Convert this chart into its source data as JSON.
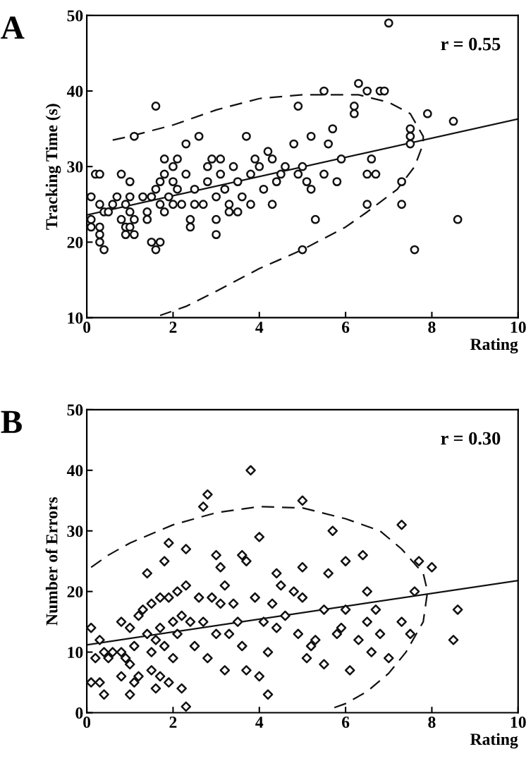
{
  "chart_data": [
    {
      "type": "scatter",
      "title": "A",
      "xlabel": "Rating",
      "ylabel": "Tracking Time (s)",
      "annotations": [
        "r = 0.55"
      ],
      "xlim": [
        0,
        10
      ],
      "ylim": [
        10,
        50
      ],
      "xticks": [
        0,
        2,
        4,
        6,
        8,
        10
      ],
      "yticks": [
        10,
        20,
        30,
        40,
        50
      ],
      "grid": false,
      "legend": false,
      "series": [
        {
          "marker": "circle",
          "color": "#111111",
          "x": [
            0.1,
            0.1,
            0.1,
            0.2,
            0.3,
            0.3,
            0.3,
            0.3,
            0.3,
            0.4,
            0.4,
            0.5,
            0.6,
            0.7,
            0.8,
            0.8,
            0.9,
            0.9,
            0.9,
            1.0,
            1.0,
            1.0,
            1.0,
            1.1,
            1.1,
            1.1,
            1.3,
            1.4,
            1.4,
            1.5,
            1.5,
            1.6,
            1.6,
            1.6,
            1.7,
            1.7,
            1.7,
            1.8,
            1.8,
            1.8,
            1.9,
            2.0,
            2.0,
            2.0,
            2.1,
            2.1,
            2.2,
            2.3,
            2.3,
            2.4,
            2.4,
            2.5,
            2.5,
            2.6,
            2.7,
            2.8,
            2.8,
            2.9,
            3.0,
            3.0,
            3.0,
            3.1,
            3.1,
            3.2,
            3.3,
            3.3,
            3.4,
            3.5,
            3.5,
            3.6,
            3.7,
            3.8,
            3.8,
            3.9,
            4.0,
            4.1,
            4.2,
            4.3,
            4.3,
            4.4,
            4.5,
            4.6,
            4.8,
            4.9,
            4.9,
            5.0,
            5.0,
            5.1,
            5.2,
            5.2,
            5.3,
            5.5,
            5.5,
            5.6,
            5.7,
            5.8,
            5.9,
            6.2,
            6.2,
            6.3,
            6.5,
            6.5,
            6.5,
            6.6,
            6.7,
            6.8,
            6.9,
            7.0,
            7.3,
            7.3,
            7.5,
            7.5,
            7.5,
            7.6,
            7.9,
            8.5,
            8.6
          ],
          "values": [
            26,
            22,
            23,
            29,
            29,
            25,
            22,
            21,
            20,
            19,
            24,
            24,
            25,
            26,
            29,
            23,
            22,
            21,
            25,
            24,
            26,
            28,
            22,
            34,
            21,
            23,
            26,
            24,
            23,
            20,
            26,
            19,
            27,
            38,
            20,
            25,
            28,
            29,
            31,
            24,
            26,
            30,
            25,
            28,
            31,
            27,
            25,
            33,
            29,
            22,
            23,
            25,
            27,
            34,
            25,
            30,
            28,
            31,
            26,
            23,
            21,
            31,
            29,
            27,
            25,
            24,
            30,
            28,
            24,
            26,
            34,
            29,
            25,
            31,
            30,
            27,
            32,
            31,
            25,
            28,
            29,
            30,
            33,
            38,
            29,
            30,
            19,
            28,
            34,
            27,
            23,
            40,
            29,
            33,
            35,
            28,
            31,
            37,
            38,
            41,
            40,
            29,
            25,
            31,
            29,
            40,
            40,
            49,
            28,
            25,
            35,
            34,
            33,
            19,
            37,
            36,
            23
          ]
        },
        {
          "type": "line",
          "line_style": "solid",
          "color": "#111111",
          "x": [
            0,
            10
          ],
          "values": [
            23.6,
            36.3
          ]
        },
        {
          "type": "line",
          "line_style": "dashed",
          "color": "#111111",
          "x": [
            0.6,
            1,
            2,
            3,
            4,
            5,
            6.3,
            7,
            7.5,
            7.8,
            7.8,
            7.6,
            7.2,
            6.5,
            6,
            5,
            4,
            3,
            2.3,
            1.7
          ],
          "values": [
            33.5,
            34,
            35.5,
            37.5,
            39,
            39.5,
            39.5,
            38.5,
            37,
            34,
            33,
            30,
            27,
            24,
            22,
            19,
            16.5,
            13.5,
            11.5,
            10.3
          ]
        }
      ]
    },
    {
      "type": "scatter",
      "title": "B",
      "xlabel": "Rating",
      "ylabel": "Number of Errors",
      "annotations": [
        "r = 0.30"
      ],
      "xlim": [
        0,
        10
      ],
      "ylim": [
        0,
        50
      ],
      "xticks": [
        0,
        2,
        4,
        6,
        8,
        10
      ],
      "yticks": [
        0,
        10,
        20,
        30,
        40,
        50
      ],
      "grid": false,
      "legend": false,
      "series": [
        {
          "marker": "diamond",
          "color": "#111111",
          "x": [
            0.1,
            0.1,
            0.2,
            0.3,
            0.3,
            0.4,
            0.4,
            0.5,
            0.6,
            0.8,
            0.8,
            0.8,
            0.9,
            1.0,
            1.0,
            1.0,
            1.1,
            1.1,
            1.2,
            1.2,
            1.3,
            1.4,
            1.4,
            1.5,
            1.5,
            1.5,
            1.6,
            1.6,
            1.7,
            1.7,
            1.7,
            1.8,
            1.8,
            1.9,
            1.9,
            1.9,
            2.0,
            2.0,
            2.1,
            2.1,
            2.2,
            2.2,
            2.3,
            2.3,
            2.3,
            2.4,
            2.5,
            2.6,
            2.7,
            2.7,
            2.8,
            2.8,
            2.9,
            3.0,
            3.0,
            3.1,
            3.1,
            3.2,
            3.2,
            3.3,
            3.4,
            3.5,
            3.6,
            3.6,
            3.7,
            3.7,
            3.8,
            3.9,
            4.0,
            4.0,
            4.1,
            4.2,
            4.2,
            4.3,
            4.4,
            4.4,
            4.5,
            4.6,
            4.8,
            4.9,
            5.0,
            5.0,
            5.0,
            5.1,
            5.2,
            5.3,
            5.5,
            5.5,
            5.6,
            5.7,
            5.8,
            5.9,
            6.0,
            6.0,
            6.1,
            6.3,
            6.4,
            6.5,
            6.5,
            6.6,
            6.7,
            6.8,
            7.0,
            7.3,
            7.3,
            7.5,
            7.6,
            7.7,
            8.0,
            8.5,
            8.6
          ],
          "values": [
            14,
            5,
            9,
            12,
            5,
            10,
            3,
            9,
            10,
            15,
            10,
            6,
            9,
            14,
            8,
            3,
            11,
            5,
            16,
            6,
            17,
            13,
            23,
            18,
            10,
            7,
            12,
            4,
            19,
            14,
            6,
            25,
            11,
            28,
            19,
            5,
            15,
            9,
            20,
            13,
            16,
            4,
            27,
            21,
            1,
            15,
            11,
            19,
            34,
            15,
            36,
            9,
            19,
            26,
            13,
            24,
            18,
            21,
            7,
            13,
            18,
            15,
            26,
            11,
            25,
            7,
            40,
            19,
            29,
            6,
            15,
            10,
            3,
            18,
            23,
            14,
            21,
            16,
            20,
            13,
            35,
            24,
            19,
            9,
            11,
            12,
            17,
            8,
            23,
            30,
            13,
            14,
            25,
            17,
            7,
            12,
            26,
            20,
            15,
            10,
            17,
            13,
            9,
            31,
            15,
            13,
            20,
            25,
            24,
            12,
            17
          ]
        },
        {
          "type": "line",
          "line_style": "solid",
          "color": "#111111",
          "x": [
            0,
            10
          ],
          "values": [
            11.2,
            21.8
          ]
        },
        {
          "type": "line",
          "line_style": "dashed",
          "color": "#111111",
          "x": [
            0.1,
            0.5,
            1,
            2,
            3,
            4,
            5,
            6,
            6.8,
            7.3,
            7.8,
            7.9,
            7.8,
            7.4,
            7,
            6.5,
            6,
            5.6
          ],
          "values": [
            24,
            26,
            28,
            31,
            33,
            34,
            33.8,
            32,
            30,
            27,
            23,
            20,
            15,
            10,
            6.5,
            3.5,
            1.5,
            0.5
          ]
        }
      ]
    }
  ]
}
